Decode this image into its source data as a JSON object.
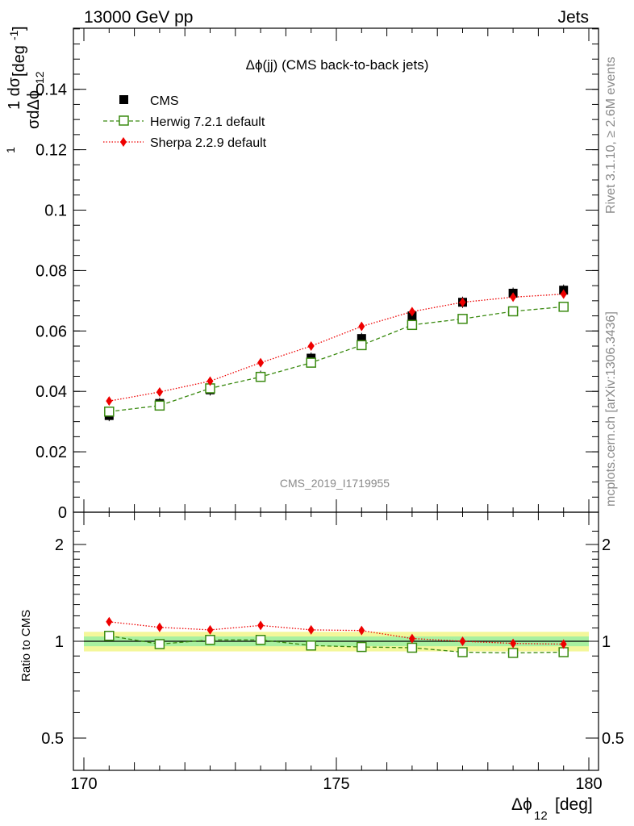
{
  "header": {
    "left": "13000 GeV pp",
    "right": "Jets"
  },
  "side_text": {
    "rivet": "Rivet 3.1.10, ≥ 2.6M events",
    "mcplots": "mcplots.cern.ch [arXiv:1306.3436]"
  },
  "watermark": "CMS_2019_I1719955",
  "chart_data": [
    {
      "type": "scatter",
      "title": "Δϕ(jj) (CMS back-to-back jets)",
      "ylabel": "1/σ dσ/dΔϕ_12 [deg^-1]",
      "xlim": [
        170,
        180
      ],
      "ylim": [
        0,
        0.16
      ],
      "yticks": [
        "0",
        "0.02",
        "0.04",
        "0.06",
        "0.08",
        "0.1",
        "0.12",
        "0.14"
      ],
      "legend_position": "top-left",
      "x": [
        170.5,
        171.5,
        172.5,
        173.5,
        174.5,
        175.5,
        176.5,
        177.5,
        178.5,
        179.5
      ],
      "series": [
        {
          "name": "CMS",
          "style": "square-marker",
          "color": "#000000",
          "values": [
            0.032,
            0.036,
            0.0405,
            0.045,
            0.051,
            0.0575,
            0.065,
            0.0695,
            0.0725,
            0.0735
          ]
        },
        {
          "name": "Herwig 7.2.1 default",
          "style": "dashed-open-square",
          "color": "#3a8a10",
          "values": [
            0.0333,
            0.0353,
            0.041,
            0.0448,
            0.0495,
            0.0553,
            0.062,
            0.064,
            0.0665,
            0.068
          ]
        },
        {
          "name": "Sherpa 2.2.9 default",
          "style": "dotted-diamond",
          "color": "#ee0000",
          "values": [
            0.0368,
            0.0398,
            0.0434,
            0.0495,
            0.055,
            0.0615,
            0.0664,
            0.0695,
            0.0712,
            0.0722
          ]
        }
      ]
    },
    {
      "type": "scatter",
      "ylabel": "Ratio to CMS",
      "xlabel": "Δϕ_12 [deg]",
      "xlim": [
        170,
        180
      ],
      "ylim": [
        0.4,
        2.3
      ],
      "ylog": true,
      "xticks": [
        "170",
        "175",
        "180"
      ],
      "yticks": [
        "0.5",
        "1",
        "2"
      ],
      "x": [
        170.5,
        171.5,
        172.5,
        173.5,
        174.5,
        175.5,
        176.5,
        177.5,
        178.5,
        179.5
      ],
      "band_outer": 0.07,
      "band_inner": 0.035,
      "series": [
        {
          "name": "Herwig 7.2.1 default",
          "color": "#3a8a10",
          "values": [
            1.04,
            0.98,
            1.01,
            1.01,
            0.97,
            0.96,
            0.955,
            0.925,
            0.92,
            0.925
          ]
        },
        {
          "name": "Sherpa 2.2.9 default",
          "color": "#ee0000",
          "values": [
            1.15,
            1.105,
            1.085,
            1.12,
            1.085,
            1.08,
            1.02,
            1.0,
            0.985,
            0.98
          ]
        }
      ]
    }
  ]
}
